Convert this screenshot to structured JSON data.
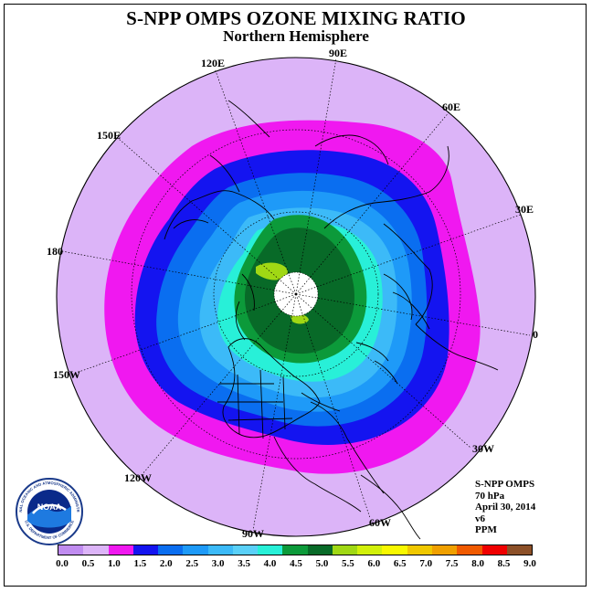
{
  "title": "S-NPP OMPS OZONE MIXING RATIO",
  "subtitle": "Northern Hemisphere",
  "longitude_labels": [
    "90E",
    "60E",
    "30E",
    "0",
    "30W",
    "60W",
    "90W",
    "120W",
    "150W",
    "180",
    "150E",
    "120E"
  ],
  "info": {
    "instrument": "S-NPP OMPS",
    "level": "70 hPa",
    "date": "April 30, 2014",
    "version": "v6",
    "units": "PPM"
  },
  "logo": {
    "text": "NOAA",
    "ring_text": "NATIONAL OCEANIC AND ATMOSPHERIC ADMINISTRATION",
    "ring_text_bottom": "U.S. DEPARTMENT OF COMMERCE"
  },
  "colorbar": {
    "ticks": [
      "0.0",
      "0.5",
      "1.0",
      "1.5",
      "2.0",
      "2.5",
      "3.0",
      "3.5",
      "4.0",
      "4.5",
      "5.0",
      "5.5",
      "6.0",
      "6.5",
      "7.0",
      "7.5",
      "8.0",
      "8.5",
      "9.0"
    ],
    "colors": [
      "#c08cf0",
      "#dcb4f8",
      "#f018f0",
      "#1414f0",
      "#0a6ef0",
      "#1e9af8",
      "#3cbaf8",
      "#5ad0f8",
      "#28f0d8",
      "#0c9a3a",
      "#086a28",
      "#a0d814",
      "#d2f00a",
      "#f8f800",
      "#f0c800",
      "#f0a000",
      "#f05a00",
      "#f00000",
      "#8c5028"
    ]
  },
  "ozone_bands_ppm": [
    "1.0",
    "1.5",
    "2.0",
    "2.5",
    "3.0",
    "3.5",
    "4.0",
    "4.5",
    "5.5"
  ]
}
